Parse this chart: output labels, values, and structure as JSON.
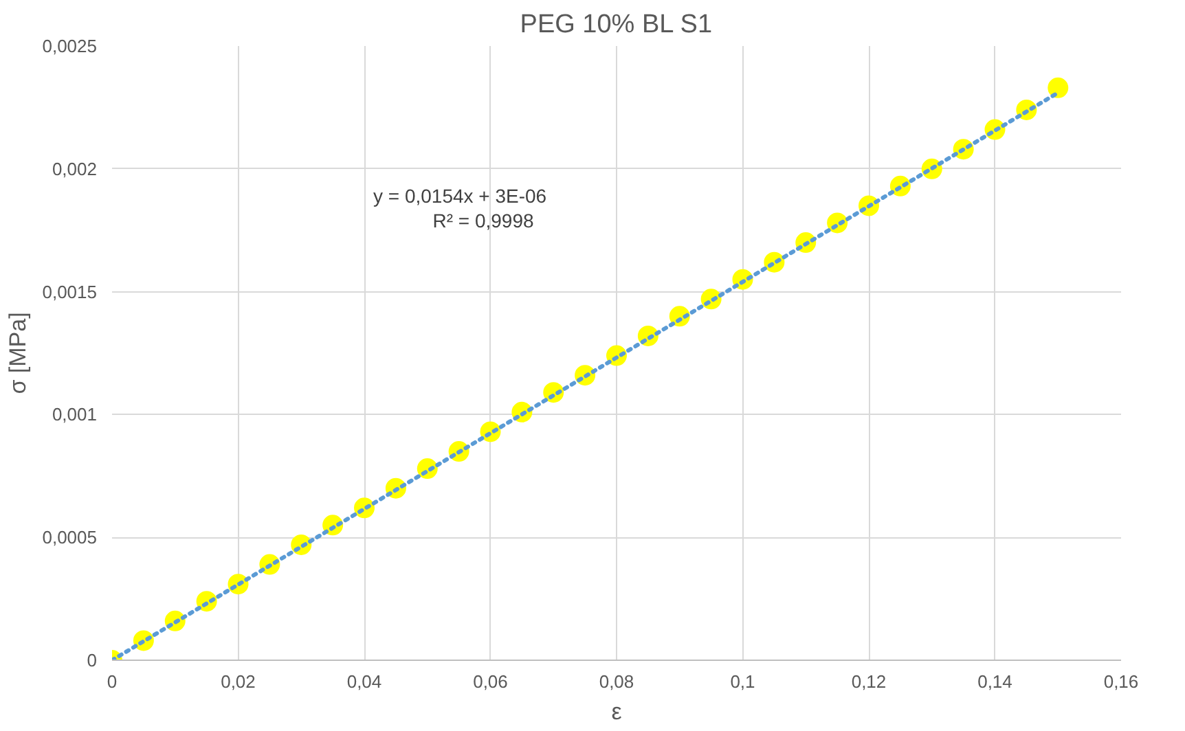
{
  "chart_data": {
    "type": "scatter",
    "title": "PEG 10% BL S1",
    "xlabel": "ε",
    "ylabel": "σ [MPa]",
    "series": [
      {
        "color": "#ffff00",
        "marker": "circle",
        "x": [
          0,
          0.005,
          0.01,
          0.015,
          0.02,
          0.025,
          0.03,
          0.035,
          0.04,
          0.045,
          0.05,
          0.055,
          0.06,
          0.065,
          0.07,
          0.075,
          0.08,
          0.085,
          0.09,
          0.095,
          0.1,
          0.105,
          0.11,
          0.115,
          0.12,
          0.125,
          0.13,
          0.135,
          0.14,
          0.145,
          0.15
        ],
        "values": [
          0,
          8e-05,
          0.00016,
          0.00024,
          0.00031,
          0.00039,
          0.00047,
          0.00055,
          0.00062,
          0.0007,
          0.00078,
          0.00085,
          0.00093,
          0.00101,
          0.00109,
          0.00116,
          0.00124,
          0.00132,
          0.0014,
          0.00147,
          0.00155,
          0.00162,
          0.0017,
          0.00178,
          0.00185,
          0.00193,
          0.002,
          0.00208,
          0.00216,
          0.00224,
          0.00233
        ]
      },
      {
        "type": "line",
        "color": "#5b9bd5",
        "line_style": "dotted",
        "x": [
          0,
          0.15
        ],
        "values": [
          0,
          0.00231
        ]
      }
    ],
    "annotations": [
      "y = 0,0154x + 3E-06",
      "R² = 0,9998"
    ],
    "xlim": [
      0,
      0.16
    ],
    "ylim": [
      0,
      0.0025
    ],
    "xticks": [
      0,
      {
        "value": 0.02,
        "label": "0,02"
      },
      {
        "value": 0.04,
        "label": "0,04"
      },
      {
        "value": 0.06,
        "label": "0,06"
      },
      {
        "value": 0.08,
        "label": "0,08"
      },
      {
        "value": 0.1,
        "label": "0,1"
      },
      {
        "value": 0.12,
        "label": "0,12"
      },
      {
        "value": 0.14,
        "label": "0,14"
      },
      {
        "value": 0.16,
        "label": "0,16"
      }
    ],
    "yticks": [
      0,
      {
        "value": 0.0005,
        "label": "0,0005"
      },
      {
        "value": 0.001,
        "label": "0,001"
      },
      {
        "value": 0.0015,
        "label": "0,0015"
      },
      {
        "value": 0.002,
        "label": "0,002"
      },
      {
        "value": 0.0025,
        "label": "0,0025"
      }
    ],
    "grid": true
  }
}
